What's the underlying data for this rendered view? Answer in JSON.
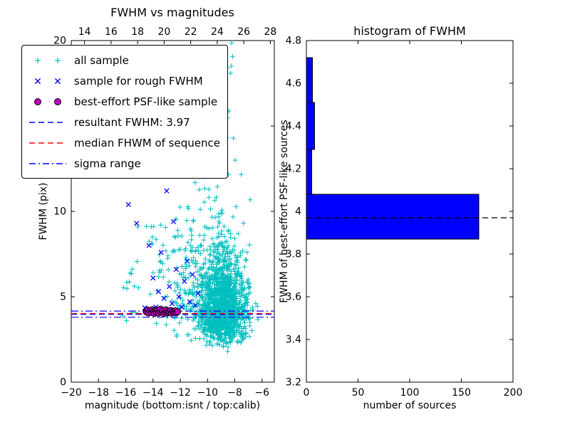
{
  "figure": {
    "background": "#ffffff"
  },
  "chart_data": [
    {
      "id": "fwhm-vs-magnitudes",
      "type": "scatter",
      "title": "FWHM vs magnitudes",
      "xlabel": "magnitude (bottom:isnt / top:calib)",
      "ylabel": "FWHM (pix)",
      "xlim": [
        -20,
        -5.1
      ],
      "ylim": [
        0,
        20
      ],
      "xticks": [
        -20,
        -18,
        -16,
        -14,
        -12,
        -10,
        -8,
        -6
      ],
      "yticks": [
        0,
        5,
        10,
        15,
        20
      ],
      "top_axis": {
        "xlim": [
          13.0,
          28.3
        ],
        "ticks": [
          14,
          16,
          18,
          20,
          22,
          24,
          26,
          28
        ]
      },
      "grid": false,
      "legend_position": "upper-left",
      "seed": 42,
      "series": [
        {
          "name": "all sample",
          "marker": "plus",
          "color": "#00bfbf",
          "clusters": [
            {
              "count": 1300,
              "x": {
                "dist": "normal",
                "mean": -8.9,
                "sd": 0.9,
                "min": -12.0,
                "max": -5.3
              },
              "y": {
                "dist": "lognormal",
                "mu": 1.48,
                "sigma": 0.3,
                "min": 1.8,
                "max": 19.8
              }
            },
            {
              "count": 260,
              "x": {
                "dist": "normal",
                "mean": -10.2,
                "sd": 1.4,
                "min": -16.5,
                "max": -6.0
              },
              "y": {
                "dist": "lognormal",
                "mu": 1.8,
                "sigma": 0.45,
                "min": 2.5,
                "max": 19.8
              }
            },
            {
              "count": 70,
              "x": {
                "dist": "uniform",
                "min": -16.3,
                "max": -11.0
              },
              "y": {
                "dist": "uniform",
                "min": 3.3,
                "max": 9.5
              }
            },
            {
              "count": 45,
              "x": {
                "dist": "normal",
                "mean": -9.7,
                "sd": 0.8,
                "min": -11.5,
                "max": -7.5
              },
              "y": {
                "dist": "uniform",
                "min": 12.0,
                "max": 19.9
              }
            }
          ]
        },
        {
          "name": "sample for rough FWHM",
          "marker": "x",
          "color": "#0000ff",
          "points": [
            [
              -15.8,
              10.4
            ],
            [
              -15.2,
              9.3
            ],
            [
              -14.6,
              4.35
            ],
            [
              -14.3,
              8.0
            ],
            [
              -14.0,
              6.1
            ],
            [
              -13.8,
              4.4
            ],
            [
              -13.6,
              5.3
            ],
            [
              -13.4,
              7.6
            ],
            [
              -13.2,
              4.9
            ],
            [
              -13.0,
              11.2
            ],
            [
              -12.8,
              5.6
            ],
            [
              -12.6,
              4.6
            ],
            [
              -12.5,
              9.4
            ],
            [
              -12.3,
              6.6
            ],
            [
              -12.1,
              5.0
            ],
            [
              -11.9,
              4.4
            ],
            [
              -11.7,
              5.9
            ],
            [
              -11.5,
              7.1
            ],
            [
              -11.3,
              4.7
            ],
            [
              -11.1,
              6.3
            ],
            [
              -10.9,
              4.5
            ],
            [
              -10.7,
              5.2
            ]
          ]
        },
        {
          "name": "best-effort PSF-like sample",
          "marker": "circle",
          "color": "#bf00bf",
          "edge": "#000000",
          "points": [
            [
              -14.5,
              4.12
            ],
            [
              -14.4,
              4.22
            ],
            [
              -14.35,
              4.05
            ],
            [
              -14.2,
              4.18
            ],
            [
              -14.1,
              4.08
            ],
            [
              -14.05,
              4.25
            ],
            [
              -13.95,
              4.15
            ],
            [
              -13.9,
              4.02
            ],
            [
              -13.8,
              4.2
            ],
            [
              -13.75,
              4.1
            ],
            [
              -13.65,
              4.22
            ],
            [
              -13.6,
              4.05
            ],
            [
              -13.5,
              4.16
            ],
            [
              -13.45,
              4.28
            ],
            [
              -13.35,
              4.08
            ],
            [
              -13.3,
              4.18
            ],
            [
              -13.2,
              4.02
            ],
            [
              -13.1,
              4.12
            ],
            [
              -13.05,
              4.24
            ],
            [
              -12.95,
              4.06
            ],
            [
              -12.9,
              4.16
            ],
            [
              -12.8,
              4.1
            ],
            [
              -12.7,
              4.2
            ],
            [
              -12.65,
              4.04
            ],
            [
              -12.55,
              4.14
            ],
            [
              -12.45,
              4.08
            ],
            [
              -12.35,
              4.18
            ],
            [
              -12.3,
              4.06
            ],
            [
              -12.2,
              4.12
            ]
          ]
        }
      ],
      "hlines": [
        {
          "name": "resultant FWHM",
          "y": 3.97,
          "color": "#0000ff",
          "style": "dashed"
        },
        {
          "name": "median FHWM of sequence",
          "y": 4.02,
          "color": "#ff0000",
          "style": "dashed"
        },
        {
          "name": "sigma range low",
          "y": 3.8,
          "color": "#0000ff",
          "style": "dashdot"
        },
        {
          "name": "sigma range high",
          "y": 4.16,
          "color": "#0000ff",
          "style": "dashdot"
        }
      ],
      "legend": [
        {
          "label": "all sample",
          "marker": "plus",
          "color": "#00bfbf"
        },
        {
          "label": "sample for rough FWHM",
          "marker": "x",
          "color": "#0000ff"
        },
        {
          "label": "best-effort PSF-like sample",
          "marker": "circle",
          "color": "#bf00bf"
        },
        {
          "label": "resultant FWHM: 3.97",
          "marker": "dashed",
          "color": "#0000ff"
        },
        {
          "label": "median FHWM of sequence",
          "marker": "dashed",
          "color": "#ff0000"
        },
        {
          "label": "sigma range",
          "marker": "dashdot",
          "color": "#0000ff"
        }
      ]
    },
    {
      "id": "histogram-of-fwhm",
      "type": "bar",
      "orientation": "horizontal",
      "title": "histogram of FWHM",
      "xlabel": "number of sources",
      "ylabel": "FWHM of best-effort PSF-like sources",
      "xlim": [
        0,
        200
      ],
      "ylim": [
        3.2,
        4.8
      ],
      "xticks": [
        0,
        50,
        100,
        150,
        200
      ],
      "yticks": [
        3.2,
        3.4,
        3.6,
        3.8,
        4.0,
        4.2,
        4.4,
        4.6,
        4.8
      ],
      "grid": false,
      "bar_color": "#0000ff",
      "bar_edge": "#000000",
      "bins": [
        {
          "from": 3.87,
          "to": 4.08,
          "count": 167
        },
        {
          "from": 4.08,
          "to": 4.29,
          "count": 5
        },
        {
          "from": 4.29,
          "to": 4.51,
          "count": 8
        },
        {
          "from": 4.51,
          "to": 4.72,
          "count": 6
        }
      ],
      "hlines": [
        {
          "name": "median FWHM marker",
          "y": 3.97,
          "color": "#000000",
          "style": "dashed"
        }
      ]
    }
  ]
}
